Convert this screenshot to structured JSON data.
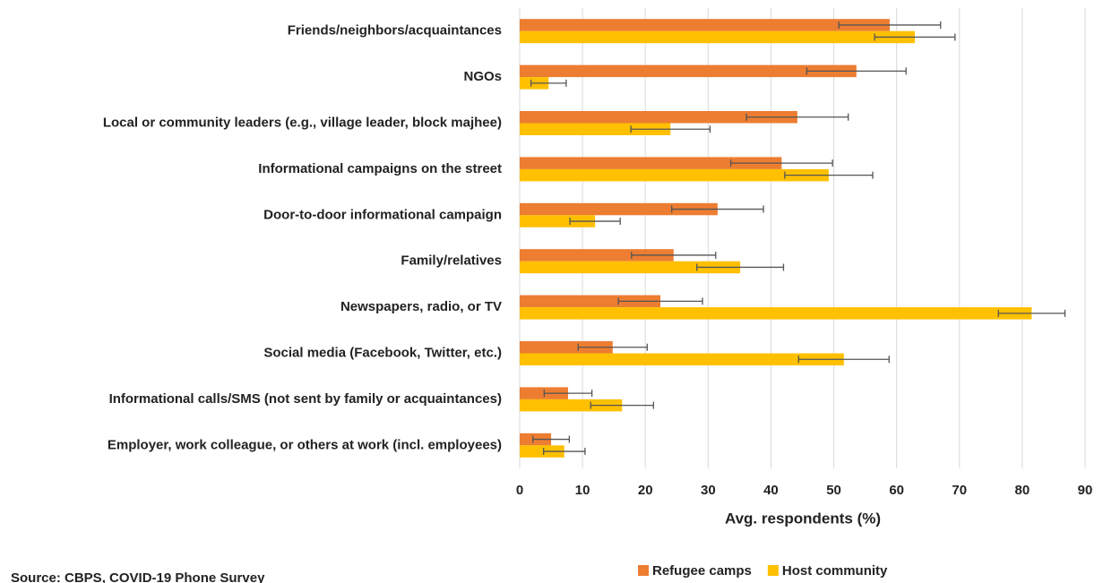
{
  "chart_data": {
    "type": "bar",
    "orientation": "horizontal",
    "categories": [
      "Friends/neighbors/acquaintances",
      "NGOs",
      "Local or community leaders (e.g., village leader, block majhee)",
      "Informational campaigns on the street",
      "Door-to-door informational campaign",
      "Family/relatives",
      "Newspapers, radio, or TV",
      "Social media (Facebook, Twitter, etc.)",
      "Informational calls/SMS (not sent by family or acquaintances)",
      "Employer, work colleague, or others at work (incl. employees)"
    ],
    "series": [
      {
        "name": "Refugee camps",
        "color": "#ed7d31",
        "values": [
          58.9,
          53.6,
          44.2,
          41.7,
          31.5,
          24.5,
          22.4,
          14.8,
          7.7,
          5.0
        ],
        "errors": [
          8.1,
          7.9,
          8.1,
          8.1,
          7.3,
          6.7,
          6.7,
          5.5,
          3.8,
          2.9
        ]
      },
      {
        "name": "Host community",
        "color": "#ffc000",
        "values": [
          62.9,
          4.6,
          24.0,
          49.2,
          12.0,
          35.1,
          81.5,
          51.6,
          16.3,
          7.1
        ],
        "errors": [
          6.4,
          2.8,
          6.3,
          7.0,
          4.0,
          6.9,
          5.3,
          7.2,
          5.0,
          3.3
        ]
      }
    ],
    "x_label": "Avg. respondents (%)",
    "xlim": [
      0,
      90
    ],
    "xticks": [
      0,
      10,
      20,
      30,
      40,
      50,
      60,
      70,
      80,
      90
    ],
    "grid": true,
    "legend": "bottom",
    "source": "Source: CBPS, COVID-19 Phone Survey"
  }
}
